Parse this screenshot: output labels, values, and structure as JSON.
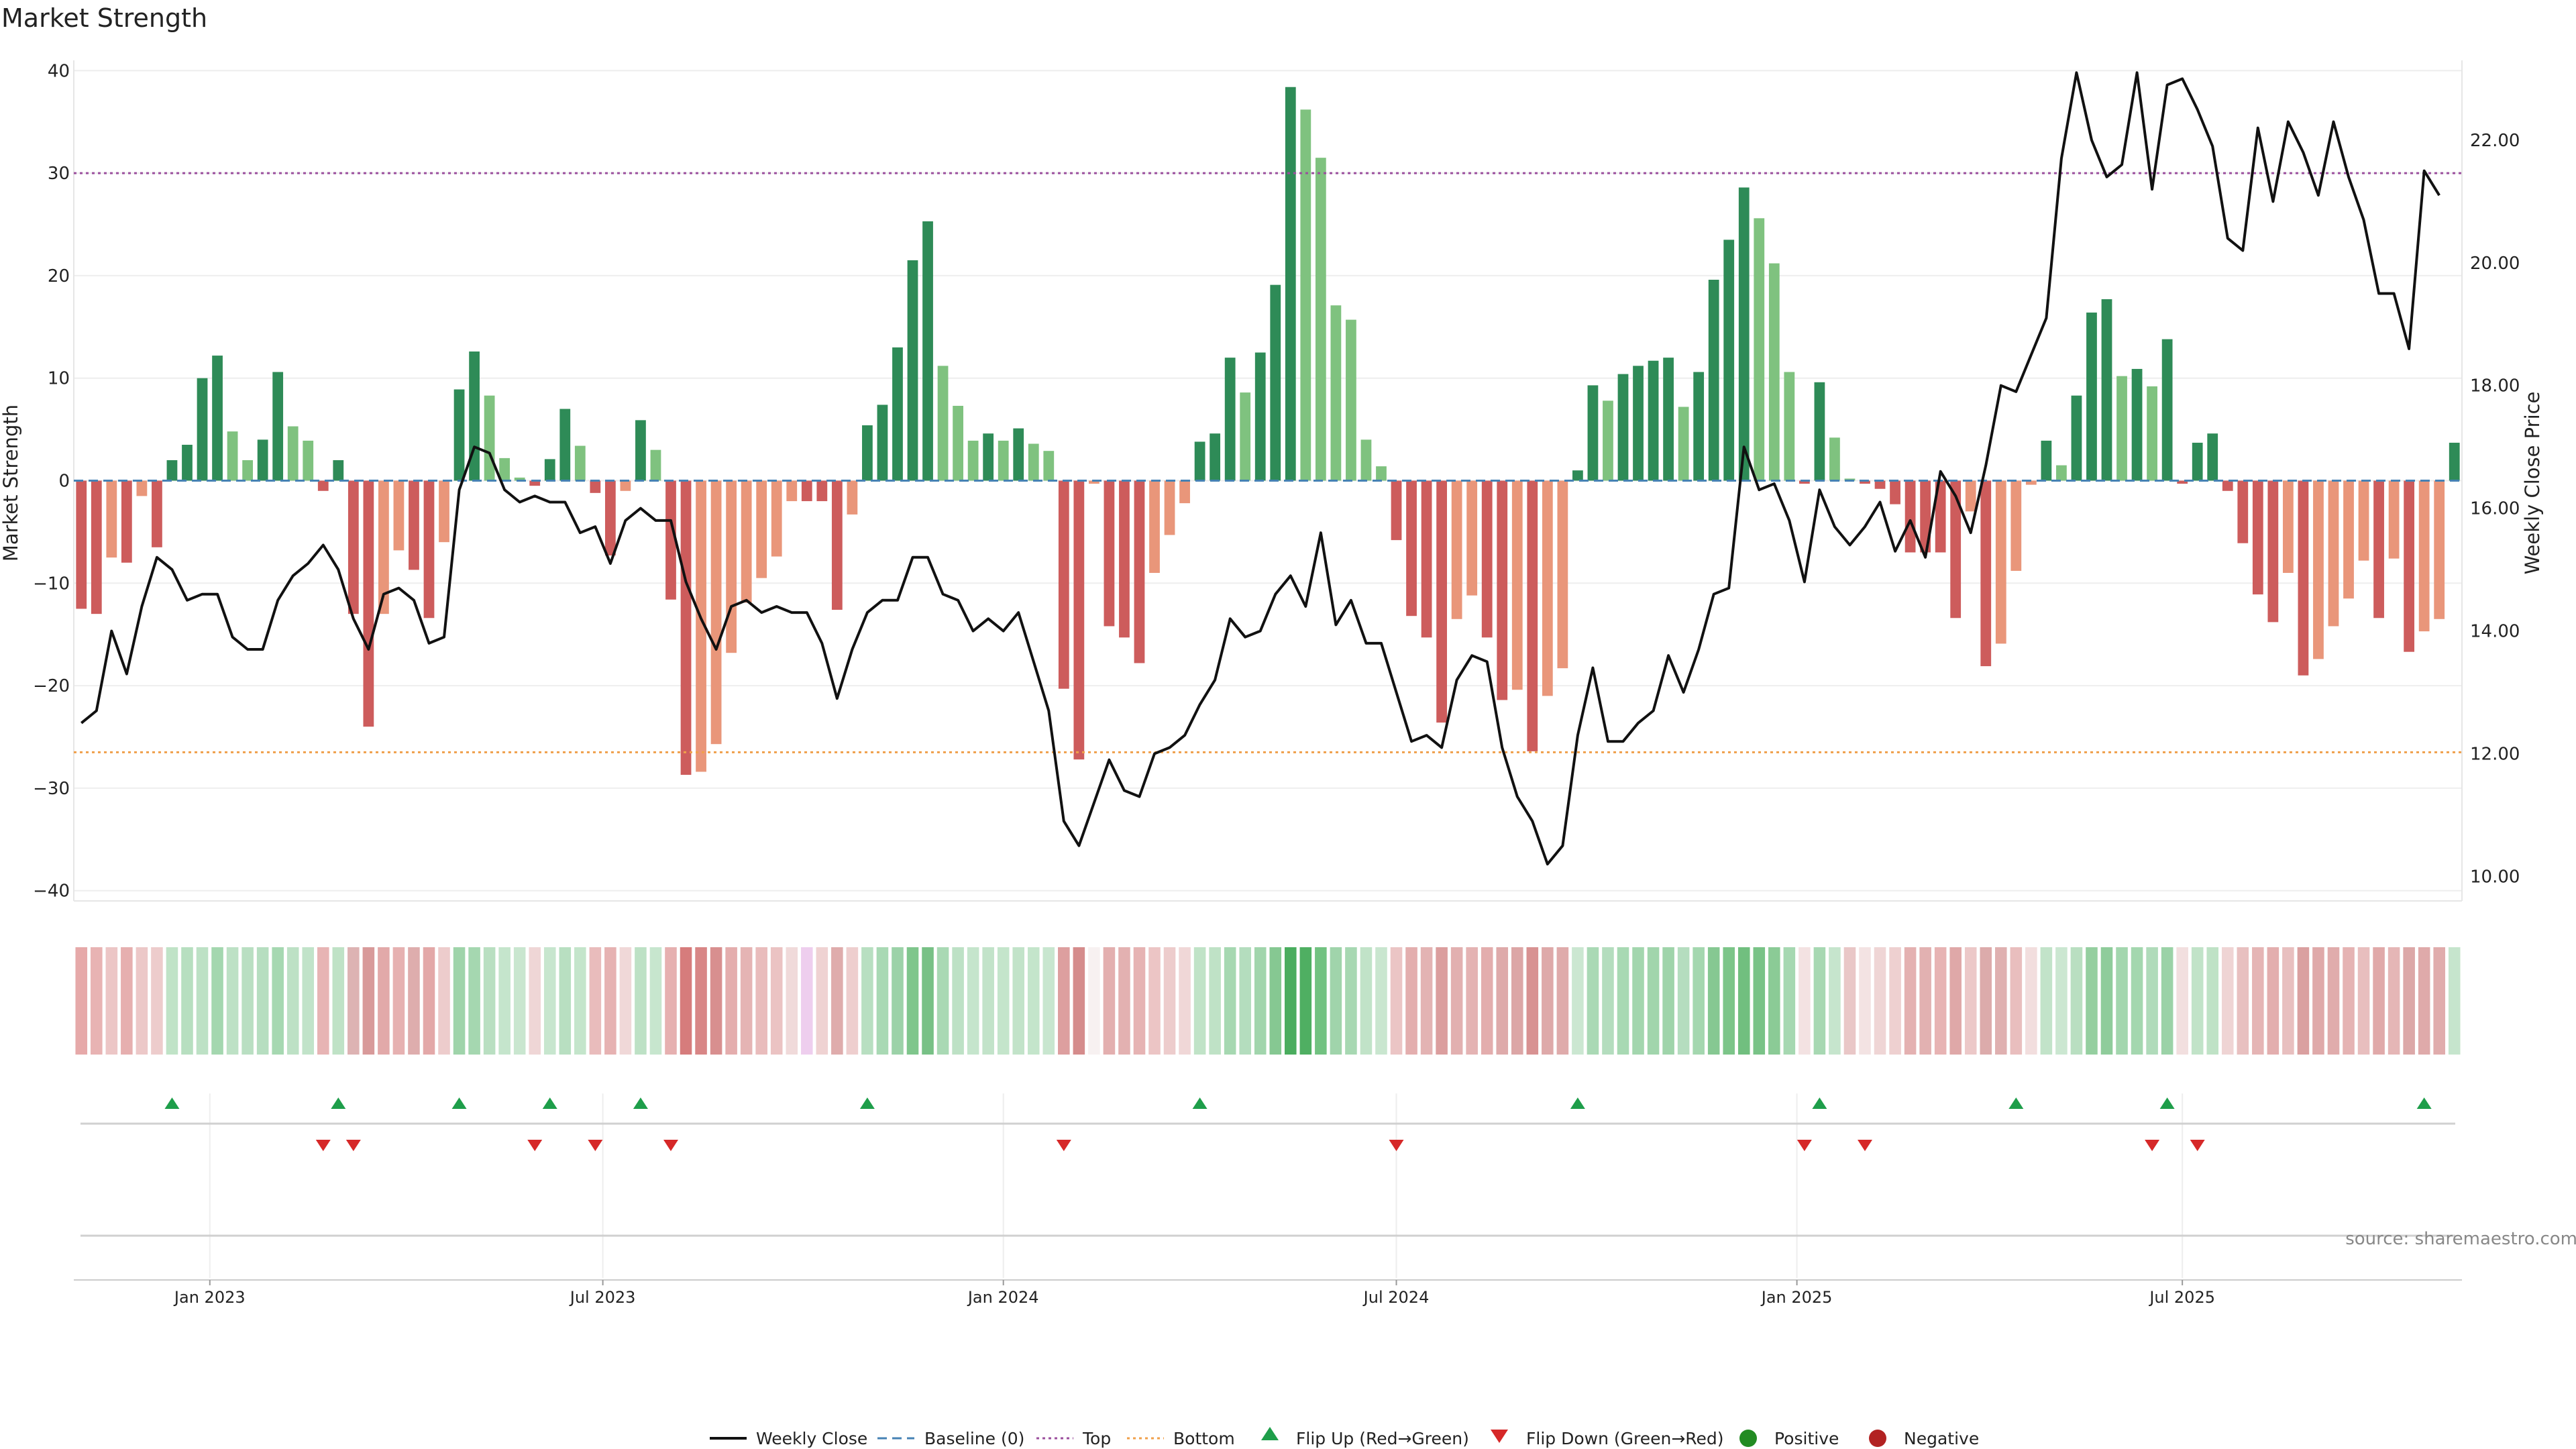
{
  "chart_data": {
    "type": "bar",
    "title": "Market Strength",
    "ylabel_left": "Market Strength",
    "ylabel_right": "Weekly Close Price",
    "ylim_left": [
      -41,
      41
    ],
    "ylim_right": [
      9.6,
      23.3
    ],
    "yticks_left": [
      40,
      30,
      20,
      10,
      0,
      -10,
      -20,
      -30,
      -40
    ],
    "yticks_right": [
      "10.00",
      "12.00",
      "14.00",
      "16.00",
      "18.00",
      "20.00",
      "22.00"
    ],
    "xticks": [
      {
        "label": "Jan 2023",
        "week": 9
      },
      {
        "label": "Jul 2023",
        "week": 35
      },
      {
        "label": "Jan 2024",
        "week": 61.5
      },
      {
        "label": "Jul 2024",
        "week": 87.5
      },
      {
        "label": "Jan 2025",
        "week": 114
      },
      {
        "label": "Jul 2025",
        "week": 139.5
      }
    ],
    "top_line": 30,
    "bottom_line": -26.5,
    "baseline": 0,
    "strength": [
      -12.5,
      -13,
      -7.5,
      -8,
      -1.5,
      -6.5,
      2,
      3.5,
      10,
      12.2,
      4.8,
      2,
      4,
      10.6,
      5.3,
      3.9,
      -1,
      2,
      -13,
      -24,
      -13,
      -6.8,
      -8.7,
      -13.4,
      -6,
      8.9,
      12.6,
      8.3,
      2.2,
      0.3,
      -0.5,
      2.1,
      7,
      3.4,
      -1.2,
      -7.3,
      -1,
      5.9,
      3,
      -11.6,
      -28.7,
      -28.4,
      -25.7,
      -16.8,
      -11.9,
      -9.5,
      -7.4,
      -2,
      -2,
      -2,
      -12.6,
      -3.3,
      5.4,
      7.4,
      13,
      21.5,
      25.3,
      11.2,
      7.3,
      3.9,
      4.6,
      3.9,
      5.1,
      3.6,
      2.9,
      -20.3,
      -27.2,
      -0.3,
      -14.2,
      -15.3,
      -17.8,
      -9,
      -5.3,
      -2.2,
      3.8,
      4.6,
      12,
      8.6,
      12.5,
      19.1,
      38.4,
      36.2,
      31.5,
      17.1,
      15.7,
      4,
      1.4,
      -5.8,
      -13.2,
      -15.3,
      -23.6,
      -13.5,
      -11.2,
      -15.3,
      -21.4,
      -20.4,
      -26.4,
      -21,
      -18.3,
      1,
      9.3,
      7.8,
      10.4,
      11.2,
      11.7,
      12,
      7.2,
      10.6,
      19.6,
      23.5,
      28.6,
      25.6,
      21.2,
      10.6,
      -0.3,
      9.6,
      4.2,
      0.2,
      -0.3,
      -0.8,
      -2.3,
      -7,
      -7,
      -7,
      -13.4,
      -3,
      -18.1,
      -15.9,
      -8.8,
      -0.4,
      3.9,
      1.5,
      8.3,
      16.4,
      17.7,
      10.2,
      10.9,
      9.2,
      13.8,
      -0.3,
      3.7,
      4.6,
      -1,
      -6.1,
      -11.1,
      -13.8,
      -9,
      -19,
      -17.4,
      -14.2,
      -11.5,
      -7.8,
      -13.4,
      -7.6,
      -16.7,
      -14.7,
      -13.5,
      3.7
    ],
    "weekly_close": [
      12.5,
      12.7,
      14.0,
      13.3,
      14.4,
      15.2,
      15.0,
      14.5,
      14.6,
      14.6,
      13.9,
      13.7,
      13.7,
      14.5,
      14.9,
      15.1,
      15.4,
      15.0,
      14.2,
      13.7,
      14.6,
      14.7,
      14.5,
      13.8,
      13.9,
      16.3,
      17.0,
      16.9,
      16.3,
      16.1,
      16.2,
      16.1,
      16.1,
      15.6,
      15.7,
      15.1,
      15.8,
      16.0,
      15.8,
      15.8,
      14.8,
      14.2,
      13.7,
      14.4,
      14.5,
      14.3,
      14.4,
      14.3,
      14.3,
      13.8,
      12.9,
      13.7,
      14.3,
      14.5,
      14.5,
      15.2,
      15.2,
      14.6,
      14.5,
      14.0,
      14.2,
      14.0,
      14.3,
      13.5,
      12.7,
      10.9,
      10.5,
      11.2,
      11.9,
      11.4,
      11.3,
      12.0,
      12.1,
      12.3,
      12.8,
      13.2,
      14.2,
      13.9,
      14.0,
      14.6,
      14.9,
      14.4,
      15.6,
      14.1,
      14.5,
      13.8,
      13.8,
      13.0,
      12.2,
      12.3,
      12.1,
      13.2,
      13.6,
      13.5,
      12.1,
      11.3,
      10.9,
      10.2,
      10.5,
      12.3,
      13.4,
      12.2,
      12.2,
      12.5,
      12.7,
      13.6,
      13.0,
      13.7,
      14.6,
      14.7,
      17.0,
      16.3,
      16.4,
      15.8,
      14.8,
      16.3,
      15.7,
      15.4,
      15.7,
      16.1,
      15.3,
      15.8,
      15.2,
      16.6,
      16.2,
      15.6,
      16.7,
      18.0,
      17.9,
      18.5,
      19.1,
      21.7,
      23.1,
      22.0,
      21.4,
      21.6,
      23.1,
      21.2,
      22.9,
      23.0,
      22.5,
      21.9,
      20.4,
      20.2,
      22.2,
      21.0,
      22.3,
      21.8,
      21.1,
      22.3,
      21.4,
      20.7,
      19.5,
      19.5,
      18.6,
      21.5,
      21.1
    ],
    "heat_colors": [
      "#e6a9a9",
      "#e8b3b3",
      "#ecc6c6",
      "#e6afaf",
      "#ecc8c8",
      "#edcccc",
      "#c0e3c7",
      "#b7dfc0",
      "#bde1c5",
      "#a4d7af",
      "#bde1c5",
      "#b9dfc2",
      "#b6dec0",
      "#a6d8b1",
      "#bde1c5",
      "#c1e3c9",
      "#e7b4b4",
      "#bfe2c6",
      "#ddb3b3",
      "#d89a9a",
      "#e2a9a9",
      "#e6b1b1",
      "#deadad",
      "#e3a8a8",
      "#edcccc",
      "#9fd4aa",
      "#a5d7b0",
      "#b9dfc1",
      "#c5e5cc",
      "#c9e6cf",
      "#efd6d6",
      "#c7e6ce",
      "#b8dfc1",
      "#c4e5cb",
      "#e9bcbc",
      "#e6b2b2",
      "#f0d8d8",
      "#bde1c5",
      "#c7e6ce",
      "#e6b0b0",
      "#d67c7c",
      "#d88686",
      "#d88f8f",
      "#e4adad",
      "#e5b4b4",
      "#e9bcbc",
      "#ebc3c3",
      "#f0dada",
      "#eeceee",
      "#efd2d2",
      "#dfacac",
      "#eecece",
      "#b8dfc1",
      "#a9d9b4",
      "#9cd2a8",
      "#7fc68c",
      "#78c186",
      "#a9d9b4",
      "#bde1c5",
      "#c5e5cc",
      "#c2e3c9",
      "#c4e5cb",
      "#c2e3c9",
      "#c4e5cb",
      "#c8e6cf",
      "#dd9f9f",
      "#d58c8c",
      "#f7f1f1",
      "#e3afaf",
      "#e3b1b1",
      "#e6b3b3",
      "#ecc5c5",
      "#edcccc",
      "#f0d7d7",
      "#c0e3c7",
      "#bfe2c6",
      "#a6d8b1",
      "#b4ddbe",
      "#a1d5ac",
      "#86c892",
      "#4aad5e",
      "#4faf62",
      "#72c281",
      "#a0d4ab",
      "#a7d8b2",
      "#c1e3c8",
      "#c9e6cf",
      "#ebc5c5",
      "#e3aeae",
      "#e3b3b3",
      "#db9e9e",
      "#e2b0b0",
      "#e4b3b3",
      "#e3adad",
      "#deaaaa",
      "#dca6a6",
      "#d89292",
      "#dea9a9",
      "#dfabab",
      "#cbe7d1",
      "#aad9b5",
      "#b4ddbe",
      "#a8d9b3",
      "#a3d6ae",
      "#a1d5ac",
      "#9fd4aa",
      "#b5ddbf",
      "#a4d7af",
      "#86c892",
      "#7cc589",
      "#71bf7f",
      "#79c387",
      "#8bcb96",
      "#a6d8b1",
      "#f3e2e2",
      "#a7d8b2",
      "#c6e5cd",
      "#e9c7c7",
      "#f3e3e3",
      "#efd5d5",
      "#eed0d0",
      "#e4b1b1",
      "#e2b1b1",
      "#e7b3b3",
      "#dfa8a8",
      "#ecc8c8",
      "#dcabab",
      "#dfb0b0",
      "#e9bebe",
      "#f2dede",
      "#c2e3c9",
      "#cbe7d1",
      "#b9dfc1",
      "#95cfa0",
      "#8fcc9b",
      "#a3d6ae",
      "#a4d7af",
      "#b0dbba",
      "#9bd2a7",
      "#f2dfdf",
      "#c1e3c8",
      "#bfe2c6",
      "#efd4d4",
      "#e8c0c0",
      "#e5b5b5",
      "#e3aeae",
      "#e8bfbf",
      "#daa0a0",
      "#dfa9a9",
      "#e0acac",
      "#e5b3b3",
      "#e8bebe",
      "#e0a9a9",
      "#e5b6b6",
      "#dca8a8",
      "#dfaaaa",
      "#e0acac",
      "#c6e5cd"
    ],
    "flip_up_weeks": [
      6,
      17,
      25,
      31,
      37,
      52,
      74,
      99,
      115,
      128,
      138,
      155
    ],
    "flip_down_weeks": [
      16,
      18,
      30,
      34,
      39,
      65,
      87,
      114,
      118,
      137,
      140
    ],
    "source": "source: sharemaestro.com"
  },
  "legend": {
    "weekly_close": "Weekly Close",
    "baseline": "Baseline (0)",
    "top": "Top",
    "bottom": "Bottom",
    "flip_up": "Flip Up (Red→Green)",
    "flip_down": "Flip Down (Green→Red)",
    "positive": "Positive",
    "negative": "Negative"
  },
  "colors": {
    "pos_dark": "#2e8b57",
    "pos_light": "#7fc27f",
    "neg_dark": "#cd5c5c",
    "neg_light": "#e9967a",
    "close": "#111111",
    "baseline": "#4682b4",
    "top": "#9b4f9e",
    "bottom": "#f0a04b",
    "flip_up": "#1e9e4a",
    "flip_down": "#d62828",
    "positive_dot": "#228b22",
    "negative_dot": "#b22222"
  }
}
